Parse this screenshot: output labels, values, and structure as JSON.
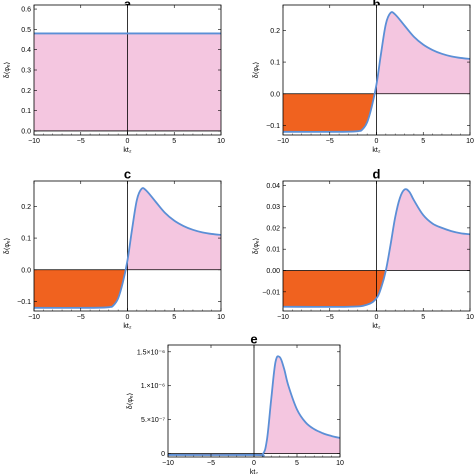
{
  "colors": {
    "curve": "#5b8fd6",
    "positive_fill": "#f4c6e0",
    "negative_fill": "#f0621f",
    "frame": "#000000"
  },
  "chart_data": [
    {
      "panel": "a",
      "type": "area",
      "xlabel": "kt₂",
      "ylabel": "δ⟨φₑ⟩",
      "xlim": [
        -10,
        10
      ],
      "ylim": [
        -0.02,
        0.62
      ],
      "xticks": [
        -10,
        -5,
        0,
        5,
        10
      ],
      "xtick_labels": [
        "−10",
        "−5",
        "0",
        "5",
        "10"
      ],
      "yticks": [
        0.0,
        0.1,
        0.2,
        0.3,
        0.4,
        0.5,
        0.6
      ],
      "ytick_labels": [
        "0.0",
        "0.1",
        "0.2",
        "0.3",
        "0.4",
        "0.5",
        "0.6"
      ],
      "x": [
        -10,
        -5,
        0,
        5,
        10
      ],
      "y": [
        0.48,
        0.48,
        0.48,
        0.48,
        0.48
      ]
    },
    {
      "panel": "b",
      "type": "area",
      "xlabel": "kt₂",
      "ylabel": "δ⟨φₑ⟩",
      "xlim": [
        -10,
        10
      ],
      "ylim": [
        -0.13,
        0.28
      ],
      "xticks": [
        -10,
        -5,
        0,
        5,
        10
      ],
      "xtick_labels": [
        "−10",
        "−5",
        "0",
        "5",
        "10"
      ],
      "yticks": [
        -0.1,
        0.0,
        0.1,
        0.2
      ],
      "ytick_labels": [
        "−0.1",
        "0.0",
        "0.1",
        "0.2"
      ],
      "x": [
        -10,
        -4,
        -2,
        -1.5,
        -1,
        -0.5,
        0,
        0.5,
        1,
        1.5,
        2,
        3,
        4,
        5,
        6,
        7,
        8,
        9,
        10
      ],
      "y": [
        -0.12,
        -0.12,
        -0.118,
        -0.112,
        -0.09,
        -0.04,
        0.03,
        0.13,
        0.22,
        0.255,
        0.25,
        0.215,
        0.18,
        0.155,
        0.138,
        0.126,
        0.118,
        0.113,
        0.11
      ]
    },
    {
      "panel": "c",
      "type": "area",
      "xlabel": "kt₂",
      "ylabel": "δ⟨φₑ⟩",
      "xlim": [
        -10,
        10
      ],
      "ylim": [
        -0.13,
        0.28
      ],
      "xticks": [
        -10,
        -5,
        0,
        5,
        10
      ],
      "xtick_labels": [
        "−10",
        "−5",
        "0",
        "5",
        "10"
      ],
      "yticks": [
        -0.1,
        0.0,
        0.1,
        0.2
      ],
      "ytick_labels": [
        "−0.1",
        "0.0",
        "0.1",
        "0.2"
      ],
      "x": [
        -10,
        -4,
        -2,
        -1.5,
        -1,
        -0.5,
        0,
        0.5,
        1,
        1.5,
        2,
        3,
        4,
        5,
        6,
        7,
        8,
        9,
        10
      ],
      "y": [
        -0.12,
        -0.12,
        -0.118,
        -0.112,
        -0.09,
        -0.04,
        0.03,
        0.13,
        0.22,
        0.255,
        0.25,
        0.215,
        0.18,
        0.155,
        0.138,
        0.126,
        0.118,
        0.113,
        0.11
      ]
    },
    {
      "panel": "d",
      "type": "area",
      "xlabel": "kt₂",
      "ylabel": "δ⟨φₑ⟩",
      "xlim": [
        -10,
        10
      ],
      "ylim": [
        -0.019,
        0.042
      ],
      "xticks": [
        -10,
        -5,
        0,
        5,
        10
      ],
      "xtick_labels": [
        "−10",
        "−5",
        "0",
        "5",
        "10"
      ],
      "yticks": [
        -0.01,
        0.0,
        0.01,
        0.02,
        0.03,
        0.04
      ],
      "ytick_labels": [
        "−0.01",
        "0.00",
        "0.01",
        "0.02",
        "0.03",
        "0.04"
      ],
      "x": [
        -10,
        -3,
        -1,
        0,
        0.5,
        1,
        1.5,
        2,
        2.5,
        3,
        3.5,
        4,
        5,
        6,
        7,
        8,
        9,
        10
      ],
      "y": [
        -0.017,
        -0.017,
        -0.016,
        -0.013,
        -0.008,
        0.0,
        0.012,
        0.025,
        0.034,
        0.038,
        0.037,
        0.033,
        0.026,
        0.022,
        0.02,
        0.0185,
        0.0175,
        0.017
      ]
    },
    {
      "panel": "e",
      "type": "area",
      "xlabel": "kt₂",
      "ylabel": "δ⟨φₑ⟩",
      "xlim": [
        -10,
        10
      ],
      "ylim": [
        -5e-08,
        1.6e-06
      ],
      "xticks": [
        -10,
        -5,
        0,
        5,
        10
      ],
      "xtick_labels": [
        "−10",
        "−5",
        "0",
        "5",
        "10"
      ],
      "yticks": [
        0,
        5e-07,
        1e-06,
        1.5e-06
      ],
      "ytick_labels": [
        "0",
        "5.×10⁻⁷",
        "1.×10⁻⁶",
        "1.5×10⁻⁶"
      ],
      "x": [
        -10,
        0,
        1,
        1.5,
        2,
        2.5,
        3,
        3.5,
        4,
        5,
        6,
        7,
        8,
        9,
        10
      ],
      "y": [
        -2e-08,
        -2e-08,
        -1e-08,
        2e-07,
        8e-07,
        1.35e-06,
        1.42e-06,
        1.25e-06,
        1e-06,
        6.5e-07,
        4.6e-07,
        3.6e-07,
        3e-07,
        2.6e-07,
        2.3e-07
      ]
    }
  ]
}
